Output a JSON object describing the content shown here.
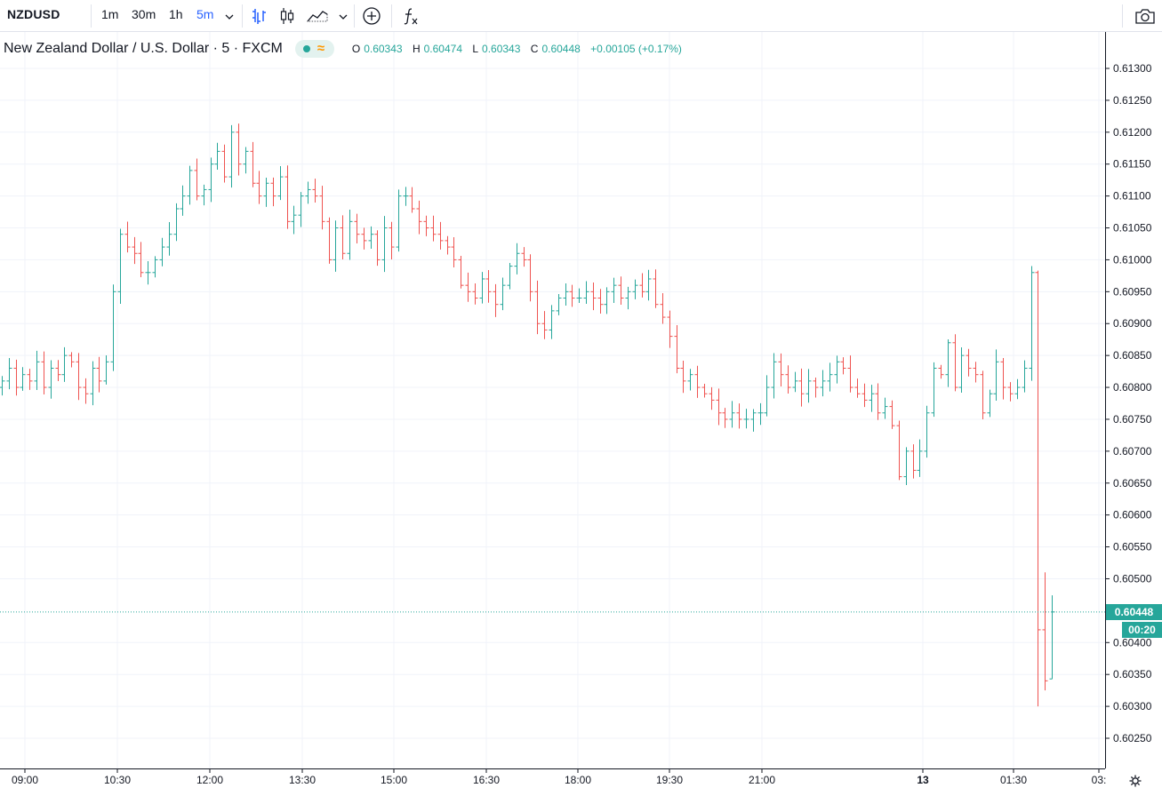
{
  "toolbar": {
    "symbol": "NZDUSD",
    "intervals": [
      "1m",
      "30m",
      "1h",
      "5m"
    ],
    "active_interval": "5m"
  },
  "legend": {
    "title": "New Zealand Dollar / U.S. Dollar · 5 · FXCM",
    "open": "0.60343",
    "high": "0.60474",
    "low": "0.60343",
    "close": "0.60448",
    "change": "+0.00105 (+0.17%)"
  },
  "price_axis": {
    "labels": [
      "0.61300",
      "0.61250",
      "0.61200",
      "0.61150",
      "0.61100",
      "0.61050",
      "0.61000",
      "0.60950",
      "0.60900",
      "0.60850",
      "0.60800",
      "0.60750",
      "0.60700",
      "0.60650",
      "0.60600",
      "0.60550",
      "0.60500",
      "0.60400",
      "0.60350",
      "0.60300",
      "0.60250"
    ],
    "last_price": "0.60448",
    "countdown": "00:20"
  },
  "time_axis": {
    "labels": [
      "09:00",
      "10:30",
      "12:00",
      "13:30",
      "15:00",
      "16:30",
      "18:00",
      "19:30",
      "21:00",
      "13",
      "01:30",
      "03:"
    ]
  },
  "colors": {
    "up": "#26a69a",
    "down": "#ef5350",
    "grid": "#f0f3fa",
    "axis": "#131722",
    "accent": "#2962ff"
  },
  "chart_data": {
    "type": "ohlc",
    "ylim": [
      0.6022,
      0.6134
    ],
    "close_series": [
      0.6081,
      0.6083,
      0.608,
      0.6082,
      0.6081,
      0.6084,
      0.608,
      0.6083,
      0.6082,
      0.6085,
      0.6084,
      0.608,
      0.6079,
      0.6083,
      0.6081,
      0.6084,
      0.6095,
      0.6104,
      0.6102,
      0.6101,
      0.6098,
      0.6098,
      0.61,
      0.6102,
      0.6104,
      0.6108,
      0.611,
      0.6114,
      0.611,
      0.6111,
      0.6115,
      0.6117,
      0.6113,
      0.612,
      0.6115,
      0.6117,
      0.6112,
      0.611,
      0.6112,
      0.611,
      0.6113,
      0.6106,
      0.6107,
      0.611,
      0.6111,
      0.611,
      0.6106,
      0.61,
      0.6105,
      0.6101,
      0.6106,
      0.6104,
      0.6103,
      0.6104,
      0.61,
      0.6105,
      0.6102,
      0.611,
      0.611,
      0.6108,
      0.6106,
      0.6105,
      0.6104,
      0.6103,
      0.6102,
      0.61,
      0.6096,
      0.6095,
      0.6094,
      0.6097,
      0.6095,
      0.6093,
      0.6096,
      0.6099,
      0.6101,
      0.61,
      0.6095,
      0.609,
      0.6089,
      0.6092,
      0.6094,
      0.6095,
      0.6094,
      0.6094,
      0.6095,
      0.6094,
      0.6093,
      0.6095,
      0.6096,
      0.6094,
      0.6095,
      0.6096,
      0.6095,
      0.6097,
      0.6093,
      0.6091,
      0.6088,
      0.6083,
      0.6081,
      0.6082,
      0.608,
      0.6079,
      0.6078,
      0.6076,
      0.6075,
      0.6076,
      0.6075,
      0.6075,
      0.6076,
      0.6076,
      0.608,
      0.6084,
      0.6082,
      0.608,
      0.6081,
      0.6079,
      0.6081,
      0.608,
      0.6081,
      0.6082,
      0.6084,
      0.6083,
      0.608,
      0.6079,
      0.6078,
      0.6079,
      0.6076,
      0.6077,
      0.6074,
      0.6066,
      0.607,
      0.6067,
      0.607,
      0.6076,
      0.6083,
      0.6082,
      0.6087,
      0.608,
      0.6085,
      0.6083,
      0.6082,
      0.6076,
      0.6079,
      0.6084,
      0.608,
      0.6079,
      0.608,
      0.6083,
      0.6098,
      0.6042,
      0.6034,
      0.60448
    ]
  }
}
